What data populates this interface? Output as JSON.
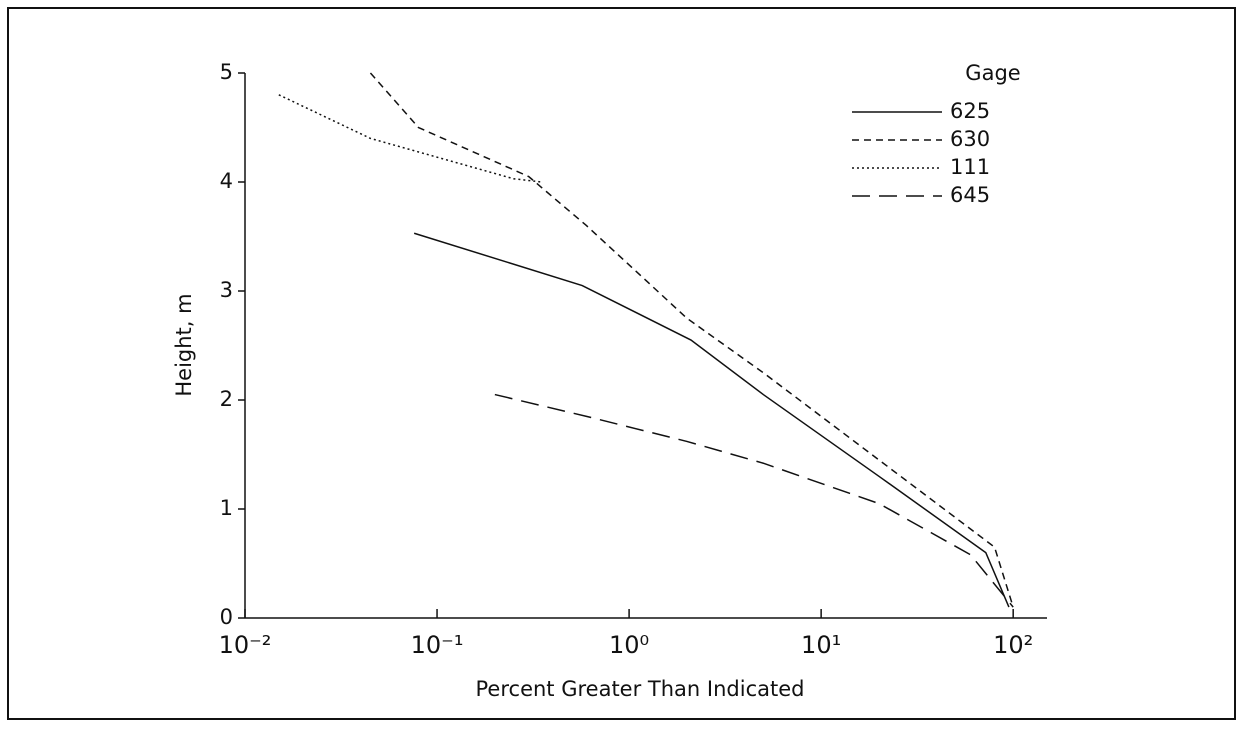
{
  "chart_data": {
    "type": "line",
    "xlabel": "Percent Greater Than Indicated",
    "ylabel": "Height, m",
    "legend_title": "Gage",
    "legend": "upper right",
    "xscale": "log",
    "xlim": [
      0.01,
      150
    ],
    "xticks": [
      {
        "value": 0.01,
        "label": "10⁻²"
      },
      {
        "value": 0.1,
        "label": "10⁻¹"
      },
      {
        "value": 1,
        "label": "10⁰"
      },
      {
        "value": 10,
        "label": "10¹"
      },
      {
        "value": 100,
        "label": "10²"
      }
    ],
    "ylim": [
      0,
      5
    ],
    "yticks": [
      0,
      1,
      2,
      3,
      4,
      5
    ],
    "grid": false,
    "series": [
      {
        "name": "625",
        "color": "#111111",
        "dash": "solid",
        "x": [
          0.076,
          0.57,
          2.1,
          5,
          20,
          72,
          95
        ],
        "values": [
          3.53,
          3.05,
          2.55,
          2.05,
          1.3,
          0.6,
          0.1
        ]
      },
      {
        "name": "630",
        "color": "#111111",
        "dash": "dashed",
        "x": [
          0.045,
          0.08,
          0.3,
          0.6,
          2,
          5,
          20,
          80,
          100
        ],
        "values": [
          5,
          4.5,
          4.05,
          3.6,
          2.75,
          2.25,
          1.45,
          0.65,
          0.1
        ]
      },
      {
        "name": "111",
        "color": "#111111",
        "dash": "dotted",
        "x": [
          0.015,
          0.045,
          0.25,
          0.35
        ],
        "values": [
          4.8,
          4.4,
          4.03,
          4.0
        ]
      },
      {
        "name": "645",
        "color": "#111111",
        "dash": "longdash",
        "x": [
          0.2,
          0.6,
          2,
          5,
          20,
          60,
          100
        ],
        "values": [
          2.05,
          1.85,
          1.62,
          1.42,
          1.05,
          0.58,
          0.1
        ]
      }
    ]
  }
}
